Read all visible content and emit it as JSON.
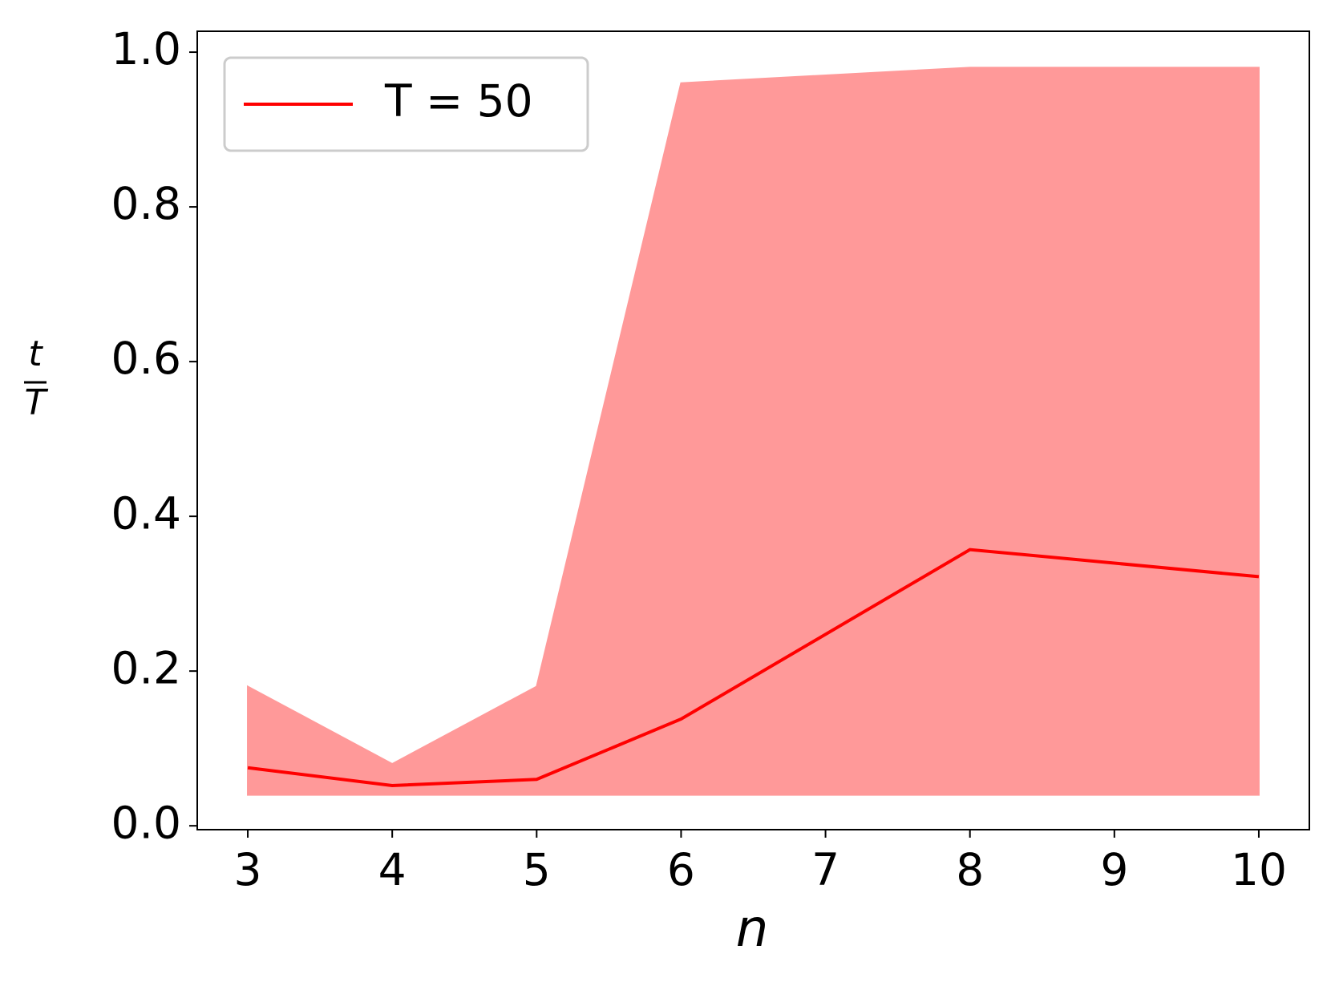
{
  "chart_data": {
    "type": "line",
    "x": [
      3,
      4,
      5,
      6,
      8,
      10
    ],
    "series": [
      {
        "name": "T = 50",
        "color": "#ff0000",
        "values": [
          0.075,
          0.052,
          0.06,
          0.138,
          0.357,
          0.322
        ]
      }
    ],
    "band": {
      "color": "#ff9999",
      "lower": [
        0.04,
        0.04,
        0.04,
        0.04,
        0.04,
        0.04
      ],
      "upper": [
        0.18,
        0.08,
        0.18,
        0.96,
        0.98,
        0.98
      ]
    },
    "xlim": [
      2.65,
      10.35
    ],
    "xticks": [
      3,
      4,
      5,
      6,
      7,
      8,
      9,
      10
    ],
    "ylim": [
      -0.005,
      1.027
    ],
    "yticks": [
      {
        "value": 0,
        "label": "0.0"
      },
      {
        "value": 0.2,
        "label": "0.2"
      },
      {
        "value": 0.4,
        "label": "0.4"
      },
      {
        "value": 0.6,
        "label": "0.6"
      },
      {
        "value": 0.8,
        "label": "0.8"
      },
      {
        "value": 1,
        "label": "1.0"
      }
    ],
    "x_label": "n",
    "y_label_numerator": "t",
    "y_label_denominator": "T",
    "legend": "upper left",
    "grid": false
  }
}
